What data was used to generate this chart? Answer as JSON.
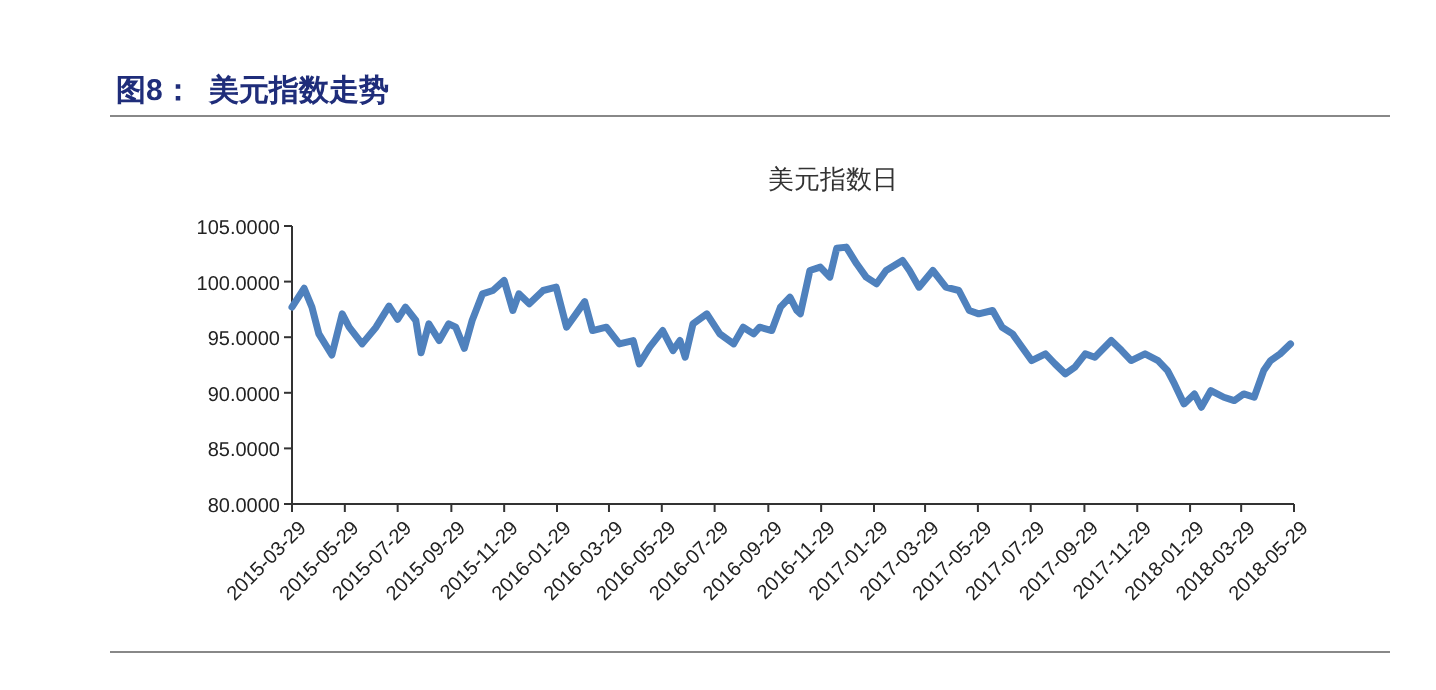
{
  "chart_data": {
    "type": "line",
    "title": "图8：  美元指数走势",
    "subtitle": "美元指数日",
    "x": [
      "2015-03-29",
      "2015-04-12",
      "2015-04-21",
      "2015-04-29",
      "2015-05-14",
      "2015-05-26",
      "2015-06-03",
      "2015-06-18",
      "2015-07-04",
      "2015-07-19",
      "2015-07-29",
      "2015-08-07",
      "2015-08-19",
      "2015-08-25",
      "2015-09-03",
      "2015-09-15",
      "2015-09-26",
      "2015-10-04",
      "2015-10-14",
      "2015-10-23",
      "2015-11-04",
      "2015-11-16",
      "2015-11-29",
      "2015-12-09",
      "2015-12-16",
      "2015-12-28",
      "2016-01-13",
      "2016-01-28",
      "2016-02-09",
      "2016-02-20",
      "2016-03-01",
      "2016-03-10",
      "2016-03-26",
      "2016-04-10",
      "2016-04-26",
      "2016-05-03",
      "2016-05-15",
      "2016-05-30",
      "2016-06-11",
      "2016-06-19",
      "2016-06-25",
      "2016-07-04",
      "2016-07-20",
      "2016-08-04",
      "2016-08-20",
      "2016-08-31",
      "2016-09-12",
      "2016-09-19",
      "2016-10-03",
      "2016-10-13",
      "2016-10-24",
      "2016-11-01",
      "2016-11-05",
      "2016-11-16",
      "2016-11-28",
      "2016-12-09",
      "2016-12-17",
      "2016-12-28",
      "2017-01-09",
      "2017-01-20",
      "2017-02-01",
      "2017-02-12",
      "2017-03-03",
      "2017-03-11",
      "2017-03-22",
      "2017-04-07",
      "2017-04-22",
      "2017-05-07",
      "2017-05-19",
      "2017-05-30",
      "2017-06-15",
      "2017-06-26",
      "2017-07-08",
      "2017-07-19",
      "2017-07-30",
      "2017-08-15",
      "2017-08-26",
      "2017-09-07",
      "2017-09-18",
      "2017-09-30",
      "2017-10-11",
      "2017-10-30",
      "2017-11-11",
      "2017-11-22",
      "2017-12-08",
      "2017-12-23",
      "2018-01-03",
      "2018-01-11",
      "2018-01-22",
      "2018-02-03",
      "2018-02-11",
      "2018-02-22",
      "2018-03-09",
      "2018-03-21",
      "2018-04-01",
      "2018-04-13",
      "2018-04-24",
      "2018-05-02",
      "2018-05-13",
      "2018-05-25"
    ],
    "series": [
      {
        "color": "#4f81bd",
        "values": [
          97.7,
          99.4,
          97.7,
          95.3,
          93.4,
          97.1,
          95.9,
          94.4,
          95.9,
          97.8,
          96.6,
          97.7,
          96.5,
          93.6,
          96.2,
          94.7,
          96.2,
          95.9,
          94.0,
          96.5,
          98.9,
          99.2,
          100.1,
          97.4,
          98.9,
          98.0,
          99.2,
          99.5,
          95.9,
          97.1,
          98.2,
          95.6,
          95.9,
          94.4,
          94.7,
          92.6,
          94.1,
          95.6,
          93.8,
          94.7,
          93.2,
          96.2,
          97.1,
          95.3,
          94.4,
          95.9,
          95.3,
          95.9,
          95.6,
          97.7,
          98.6,
          97.4,
          97.1,
          101.0,
          101.3,
          100.4,
          103.0,
          103.1,
          101.6,
          100.4,
          99.8,
          101.0,
          101.9,
          101.0,
          99.5,
          101.0,
          99.5,
          99.2,
          97.4,
          97.1,
          97.4,
          95.9,
          95.3,
          94.1,
          92.9,
          93.5,
          92.6,
          91.7,
          92.3,
          93.5,
          93.2,
          94.7,
          93.8,
          92.9,
          93.5,
          92.9,
          92.0,
          90.8,
          89.0,
          89.9,
          88.7,
          90.2,
          89.6,
          89.3,
          89.9,
          89.6,
          92.0,
          92.9,
          93.5,
          94.4
        ]
      }
    ],
    "xlim": [
      "2015-03-29",
      "2018-05-29"
    ],
    "xticks": [
      "2015-03-29",
      "2015-05-29",
      "2015-07-29",
      "2015-09-29",
      "2015-11-29",
      "2016-01-29",
      "2016-03-29",
      "2016-05-29",
      "2016-07-29",
      "2016-09-29",
      "2016-11-29",
      "2017-01-29",
      "2017-03-29",
      "2017-05-29",
      "2017-07-29",
      "2017-09-29",
      "2017-11-29",
      "2018-01-29",
      "2018-03-29",
      "2018-05-29"
    ],
    "ylim": [
      80,
      105
    ],
    "yticks": [
      {
        "value": 80,
        "label": "80.0000"
      },
      {
        "value": 85,
        "label": "85.0000"
      },
      {
        "value": 90,
        "label": "90.0000"
      },
      {
        "value": 95,
        "label": "95.0000"
      },
      {
        "value": 100,
        "label": "100.0000"
      },
      {
        "value": 105,
        "label": "105.0000"
      }
    ],
    "grid": false,
    "marker": "none",
    "line_style": "solid"
  }
}
